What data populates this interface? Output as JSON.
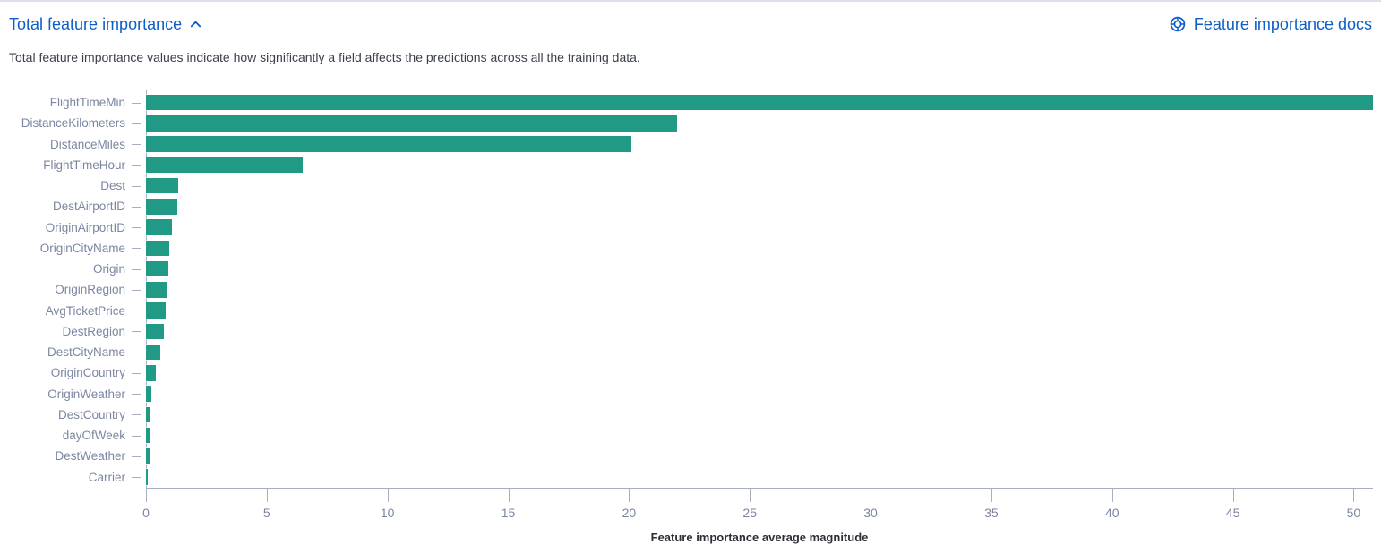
{
  "header": {
    "title": "Total feature importance",
    "collapse_icon": "chevron-up",
    "docs_link_label": "Feature importance docs",
    "docs_icon": "help-life-ring",
    "link_color": "#0b5fc7"
  },
  "description": "Total feature importance values indicate how significantly a field affects the predictions across all the training data.",
  "chart_data": {
    "type": "bar",
    "orientation": "horizontal",
    "title": "",
    "xlabel": "Feature importance average magnitude",
    "ylabel": "",
    "categories": [
      "FlightTimeMin",
      "DistanceKilometers",
      "DistanceMiles",
      "FlightTimeHour",
      "Dest",
      "DestAirportID",
      "OriginAirportID",
      "OriginCityName",
      "Origin",
      "OriginRegion",
      "AvgTicketPrice",
      "DestRegion",
      "DestCityName",
      "OriginCountry",
      "OriginWeather",
      "DestCountry",
      "dayOfWeek",
      "DestWeather",
      "Carrier"
    ],
    "values": [
      50.8,
      22.0,
      20.1,
      6.5,
      1.33,
      1.3,
      1.07,
      0.96,
      0.94,
      0.88,
      0.83,
      0.73,
      0.6,
      0.41,
      0.22,
      0.2,
      0.18,
      0.15,
      0.06
    ],
    "xlim": [
      0,
      50.8
    ],
    "xticks": [
      0,
      5,
      10,
      15,
      20,
      25,
      30,
      35,
      40,
      45,
      50
    ],
    "grid": false,
    "legend": "none",
    "bar_color": "#219a85",
    "axis_color": "#a6aec0",
    "tick_label_color": "#7c86a2"
  }
}
